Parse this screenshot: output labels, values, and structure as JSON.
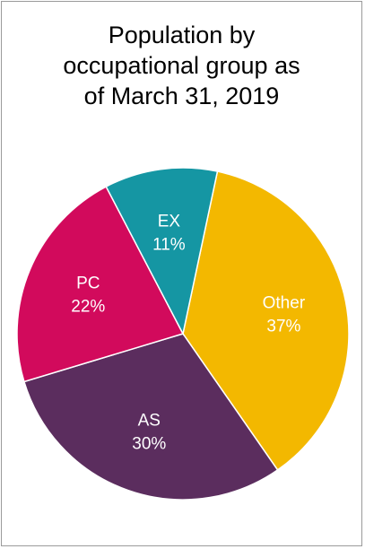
{
  "chart_data": {
    "type": "pie",
    "title": "Population by occupational group as of March 31, 2019",
    "title_lines": [
      "Population by",
      "occupational group as",
      "of March 31, 2019"
    ],
    "slices": [
      {
        "label": "Other",
        "value": 37,
        "value_label": "37%",
        "color": "#f3b800"
      },
      {
        "label": "AS",
        "value": 30,
        "value_label": "30%",
        "color": "#5b2d5e"
      },
      {
        "label": "PC",
        "value": 22,
        "value_label": "22%",
        "color": "#d20a5c"
      },
      {
        "label": "EX",
        "value": 11,
        "value_label": "11%",
        "color": "#1596a3"
      }
    ]
  }
}
